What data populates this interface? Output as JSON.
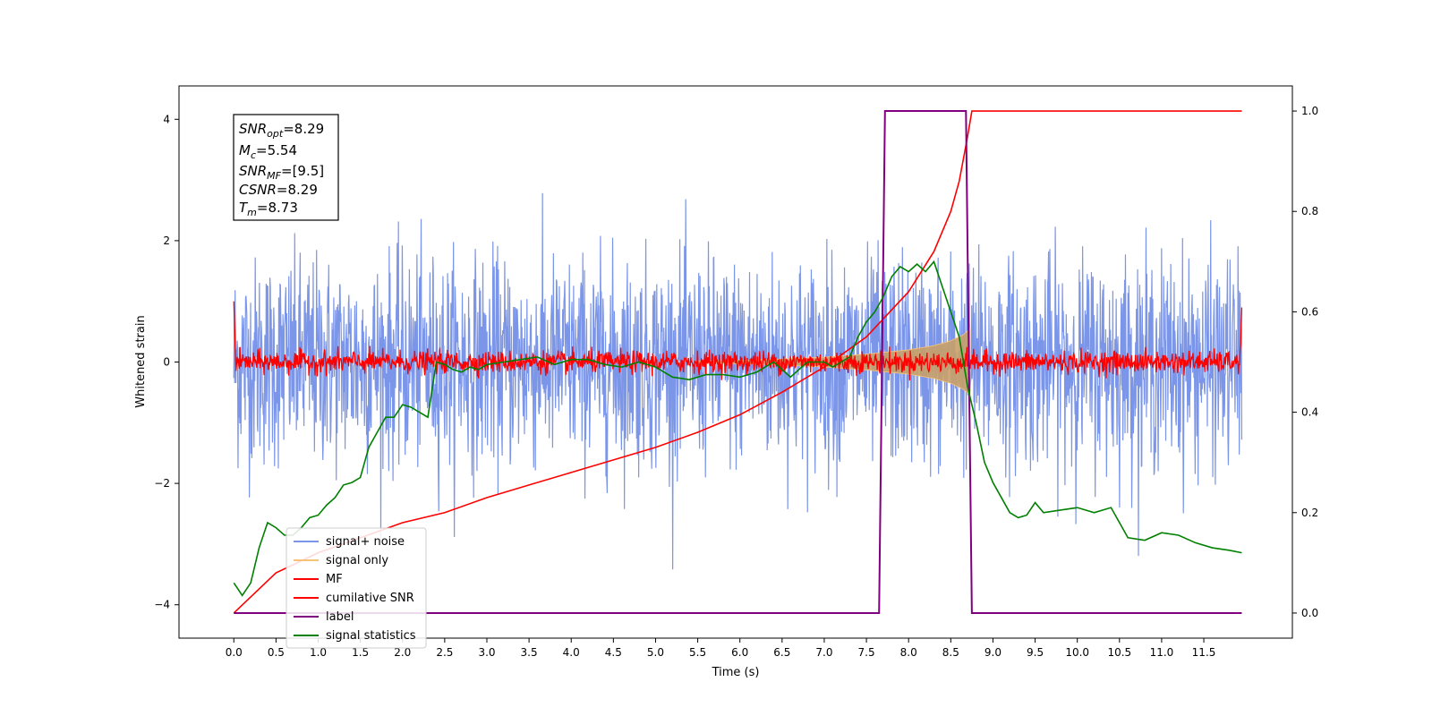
{
  "chart_data": {
    "type": "line",
    "xlabel": "Time (s)",
    "ylabel": "Whitened strain",
    "x_ticks": [
      "0.0",
      "0.5",
      "1.0",
      "1.5",
      "2.0",
      "2.5",
      "3.0",
      "3.5",
      "4.0",
      "4.5",
      "5.0",
      "5.5",
      "6.0",
      "6.5",
      "7.0",
      "7.5",
      "8.0",
      "8.5",
      "9.0",
      "9.5",
      "10.0",
      "10.5",
      "11.0",
      "11.5"
    ],
    "y_left_ticks": [
      "−4",
      "−2",
      "0",
      "2",
      "4"
    ],
    "y_right_ticks": [
      "0.0",
      "0.2",
      "0.4",
      "0.6",
      "0.8",
      "1.0"
    ],
    "xlim": [
      -0.65,
      12.55
    ],
    "ylim_left": [
      -4.55,
      4.55
    ],
    "ylim_right": [
      -0.05,
      1.05
    ],
    "colors": {
      "signal_noise": "#7b95e8",
      "signal_only": "#f5c27a",
      "signal_envelope": "#c9a068",
      "mf": "#ff0000",
      "cumulative_snr": "#ff0000",
      "label": "#800080",
      "signal_statistics": "#008000"
    },
    "info_box": {
      "snr_opt": "=8.29",
      "mc": "=5.54",
      "snr_mf": "=[9.5]",
      "csnr": "=8.29",
      "tm": "=8.73"
    },
    "legend": {
      "signal_noise": "signal+ noise",
      "signal_only": "signal only",
      "mf": "MF",
      "cumulative_snr": "cumilative SNR",
      "label": "label",
      "signal_statistics": "signal statistics"
    },
    "series": [
      {
        "name": "label",
        "axis": "right",
        "x": [
          0.0,
          7.65,
          7.72,
          8.68,
          8.75,
          11.95
        ],
        "values": [
          0.0,
          0.0,
          1.0,
          1.0,
          0.0,
          0.0
        ]
      },
      {
        "name": "cumilative SNR",
        "axis": "right",
        "x": [
          0.0,
          0.5,
          1.0,
          1.5,
          2.0,
          2.5,
          3.0,
          3.5,
          4.0,
          4.5,
          5.0,
          5.5,
          6.0,
          6.5,
          7.0,
          7.5,
          8.0,
          8.3,
          8.5,
          8.6,
          8.7,
          8.75,
          9.0,
          10.0,
          11.0,
          11.95
        ],
        "values": [
          0.0,
          0.08,
          0.12,
          0.15,
          0.18,
          0.2,
          0.23,
          0.255,
          0.28,
          0.305,
          0.33,
          0.36,
          0.395,
          0.44,
          0.49,
          0.55,
          0.64,
          0.72,
          0.8,
          0.86,
          0.95,
          1.0,
          1.0,
          1.0,
          1.0,
          1.0
        ]
      },
      {
        "name": "signal statistics",
        "axis": "right",
        "x": [
          0.0,
          0.1,
          0.2,
          0.3,
          0.4,
          0.5,
          0.6,
          0.7,
          0.8,
          0.9,
          1.0,
          1.1,
          1.2,
          1.3,
          1.4,
          1.5,
          1.6,
          1.7,
          1.8,
          1.9,
          2.0,
          2.1,
          2.2,
          2.3,
          2.4,
          2.5,
          2.6,
          2.7,
          2.8,
          2.9,
          3.0,
          3.2,
          3.4,
          3.6,
          3.8,
          4.0,
          4.2,
          4.4,
          4.6,
          4.8,
          5.0,
          5.2,
          5.4,
          5.6,
          5.8,
          6.0,
          6.2,
          6.4,
          6.6,
          6.8,
          7.0,
          7.1,
          7.2,
          7.3,
          7.4,
          7.5,
          7.6,
          7.7,
          7.8,
          7.9,
          8.0,
          8.1,
          8.2,
          8.3,
          8.4,
          8.5,
          8.6,
          8.7,
          8.8,
          8.9,
          9.0,
          9.1,
          9.2,
          9.3,
          9.4,
          9.5,
          9.6,
          9.8,
          10.0,
          10.2,
          10.4,
          10.6,
          10.8,
          11.0,
          11.2,
          11.4,
          11.6,
          11.8,
          11.95
        ],
        "values": [
          0.06,
          0.035,
          0.06,
          0.13,
          0.18,
          0.17,
          0.155,
          0.155,
          0.17,
          0.19,
          0.195,
          0.215,
          0.23,
          0.255,
          0.26,
          0.27,
          0.33,
          0.36,
          0.39,
          0.39,
          0.415,
          0.41,
          0.4,
          0.39,
          0.5,
          0.495,
          0.485,
          0.48,
          0.49,
          0.485,
          0.495,
          0.5,
          0.505,
          0.51,
          0.495,
          0.505,
          0.505,
          0.495,
          0.49,
          0.5,
          0.49,
          0.47,
          0.465,
          0.475,
          0.475,
          0.47,
          0.48,
          0.5,
          0.47,
          0.5,
          0.5,
          0.49,
          0.5,
          0.51,
          0.55,
          0.58,
          0.6,
          0.63,
          0.67,
          0.69,
          0.68,
          0.695,
          0.68,
          0.7,
          0.65,
          0.6,
          0.55,
          0.45,
          0.38,
          0.3,
          0.26,
          0.23,
          0.2,
          0.19,
          0.195,
          0.22,
          0.2,
          0.205,
          0.21,
          0.2,
          0.21,
          0.15,
          0.145,
          0.16,
          0.155,
          0.14,
          0.13,
          0.125,
          0.12
        ]
      },
      {
        "name": "signal only",
        "axis": "left",
        "x": [
          5.5,
          6.0,
          6.5,
          7.0,
          7.5,
          8.0,
          8.3,
          8.5,
          8.65,
          8.73
        ],
        "values": [
          0.02,
          0.03,
          0.05,
          0.08,
          0.13,
          0.2,
          0.27,
          0.35,
          0.45,
          0.55
        ]
      },
      {
        "name": "signal+ noise",
        "axis": "left",
        "x_range": [
          0.0,
          11.95
        ],
        "std": 0.85
      },
      {
        "name": "MF",
        "axis": "left",
        "x_range": [
          0.0,
          11.95
        ],
        "std": 0.09
      }
    ]
  }
}
